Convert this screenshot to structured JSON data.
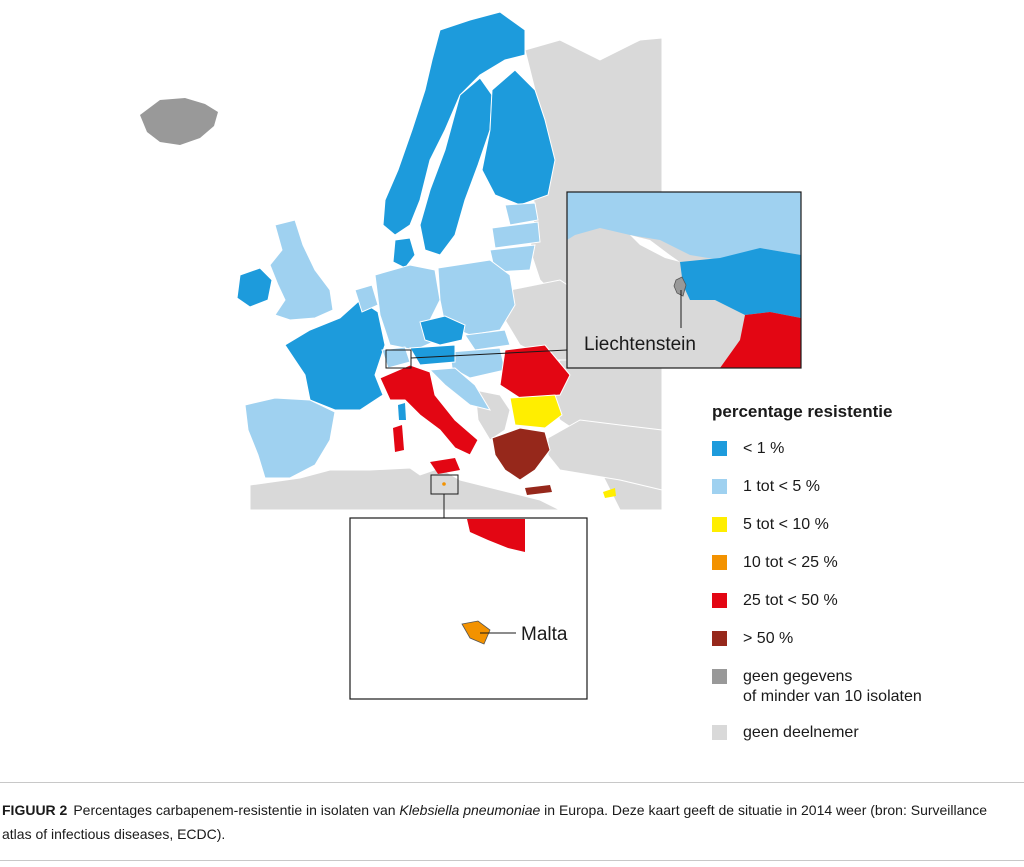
{
  "legend": {
    "title": "percentage resistentie",
    "items": [
      {
        "label": "< 1 %",
        "color": "#1d9bdc"
      },
      {
        "label": "1 tot < 5 %",
        "color": "#9fd1f0"
      },
      {
        "label": "5 tot < 10 %",
        "color": "#ffee00"
      },
      {
        "label": "10 tot < 25 %",
        "color": "#f39200"
      },
      {
        "label": "25 tot < 50 %",
        "color": "#e30613"
      },
      {
        "label": "> 50 %",
        "color": "#96281b"
      },
      {
        "label": "geen gegevens\nof minder van 10 isolaten",
        "color": "#999999"
      },
      {
        "label": "geen deelnemer",
        "color": "#d9d9d9"
      }
    ]
  },
  "insets": {
    "liechtenstein": "Liechtenstein",
    "malta": "Malta"
  },
  "caption": {
    "label": "FIGUUR 2",
    "text_before": "Percentages carbapenem-resistentie in isolaten van ",
    "text_italic": "Klebsiella pneumoniae",
    "text_after": " in Europa. Deze kaart geeft de situatie in 2014 weer (bron: Surveillance atlas of infectious diseases, ECDC)."
  },
  "colors": {
    "lt1": "#1d9bdc",
    "r1to5": "#9fd1f0",
    "r5to10": "#ffee00",
    "r10to25": "#f39200",
    "r25to50": "#e30613",
    "gt50": "#96281b",
    "nodata": "#999999",
    "nonparticipant": "#d9d9d9"
  }
}
